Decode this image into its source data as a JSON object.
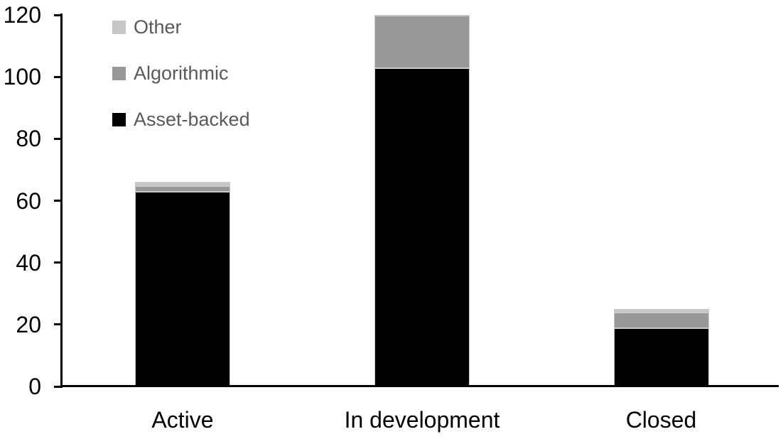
{
  "chart_data": {
    "type": "bar",
    "stacked": true,
    "title": "",
    "xlabel": "",
    "ylabel": "",
    "categories": [
      "Active",
      "In development",
      "Closed"
    ],
    "series": [
      {
        "name": "Asset-backed",
        "color": "#000000",
        "values": [
          63,
          103,
          19
        ]
      },
      {
        "name": "Algorithmic",
        "color": "#989898",
        "values": [
          2,
          17,
          5
        ]
      },
      {
        "name": "Other",
        "color": "#c6c6c6",
        "values": [
          1,
          0,
          1
        ]
      }
    ],
    "totals": [
      66,
      120,
      25
    ],
    "ylim": [
      0,
      120
    ],
    "yticks": [
      0,
      20,
      40,
      60,
      80,
      100,
      120
    ],
    "grid": false,
    "legend_position": "top-left",
    "legend_order": [
      "Other",
      "Algorithmic",
      "Asset-backed"
    ]
  },
  "styles": {
    "background": "#ffffff",
    "axis_color": "#000000",
    "tick_label_color": "#000000",
    "legend_text_color": "#595959",
    "segment_edge_color": "#c9c9c9"
  }
}
